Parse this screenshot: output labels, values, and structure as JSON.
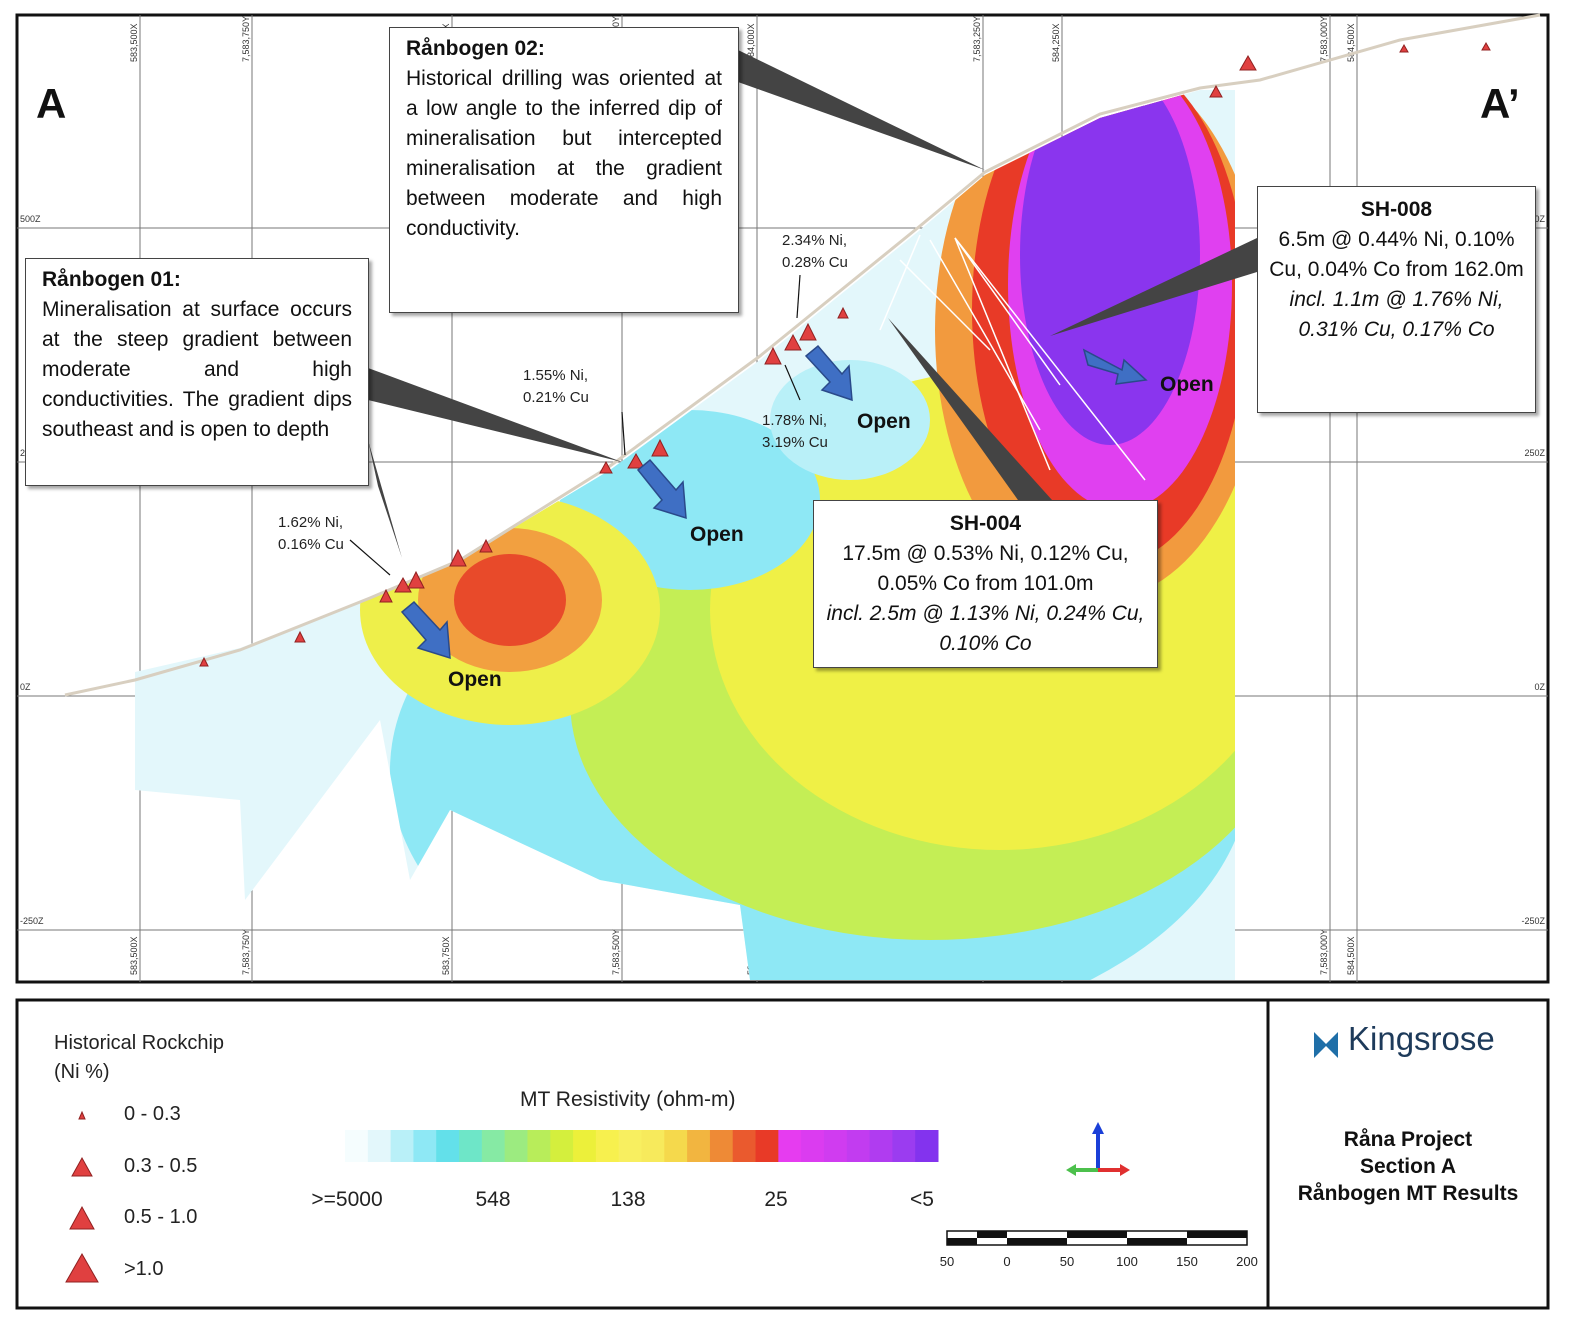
{
  "section": {
    "start_label": "A",
    "end_label": "A’"
  },
  "grid": {
    "vertical_labels": [
      "583,500X",
      "7,583,750Y",
      "583,750X",
      "7,583,500Y",
      "584,000X",
      "7,583,250Y",
      "584,250X",
      "7,583,000Y",
      "584,500X"
    ],
    "elevation_labels": [
      "500Z",
      "250Z",
      "0Z",
      "-250Z"
    ]
  },
  "callouts": {
    "ranbogen_01": {
      "title": "Rånbogen 01:",
      "text": "Mineralisation at surface occurs at the steep gradient between moderate and high conductivities. The gradient dips southeast and is open to depth"
    },
    "ranbogen_02": {
      "title": "Rånbogen 02:",
      "text": "Historical drilling was oriented at a low angle to the inferred dip of mineralisation but intercepted mineralisation at the gradient between moderate and high conductivity."
    },
    "sh_008": {
      "title": "SH-008",
      "line1": "6.5m @ 0.44% Ni, 0.10% Cu, 0.04% Co from 162.0m",
      "line2": "incl. 1.1m @ 1.76% Ni, 0.31% Cu, 0.17% Co"
    },
    "sh_004": {
      "title": "SH-004",
      "line1": "17.5m @ 0.53% Ni, 0.12% Cu, 0.05% Co from 101.0m",
      "line2": "incl. 2.5m @ 1.13% Ni, 0.24% Cu, 0.10% Co"
    }
  },
  "assays": [
    {
      "ni": "1.62% Ni,",
      "cu": "0.16% Cu"
    },
    {
      "ni": "1.55% Ni,",
      "cu": "0.21% Cu"
    },
    {
      "ni": "2.34% Ni,",
      "cu": "0.28% Cu"
    },
    {
      "ni": "1.78% Ni,",
      "cu": "3.19% Cu"
    }
  ],
  "open_labels": [
    "Open",
    "Open",
    "Open",
    "Open"
  ],
  "legend": {
    "rockchip_title": "Historical Rockchip",
    "rockchip_unit": "(Ni %)",
    "rockchip_classes": [
      "0 - 0.3",
      "0.3 - 0.5",
      "0.5 - 1.0",
      ">1.0"
    ],
    "resistivity_title": "MT Resistivity (ohm-m)",
    "resistivity_ticks": [
      ">=5000",
      "548",
      "138",
      "25",
      "<5"
    ],
    "resistivity_colors": [
      "#f5fdfe",
      "#e3f7fb",
      "#b9f0f8",
      "#8ee8f5",
      "#63e0ea",
      "#6ee6c8",
      "#86eaa4",
      "#9ceb80",
      "#b8ed5a",
      "#d4ef3d",
      "#ecf03a",
      "#f7f04e",
      "#f8ef60",
      "#f7ea5c",
      "#f5d94c",
      "#f2b540",
      "#ee8a36",
      "#ea5a2e",
      "#e83a27",
      "#e63cf0",
      "#db3cf0",
      "#d03cf0",
      "#c23cf0",
      "#b03cf0",
      "#9b3cf0",
      "#8333ee"
    ],
    "scale_labels": [
      "50",
      "0",
      "50",
      "100",
      "150",
      "200"
    ]
  },
  "title_block": {
    "logo": "Kingsrose",
    "lines": [
      "Råna Project",
      "Section A",
      "Rånbogen MT Results"
    ]
  }
}
